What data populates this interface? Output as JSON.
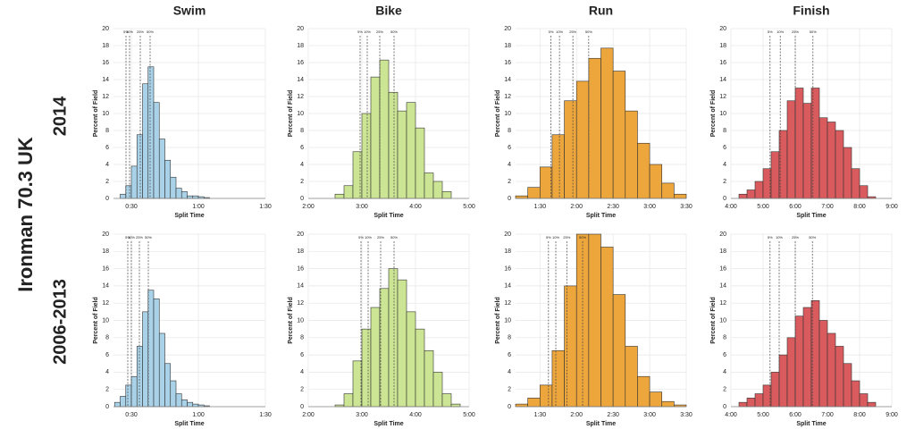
{
  "figure": {
    "title": "Ironman 70.3 UK",
    "rows": [
      "2014",
      "2006-2013"
    ]
  },
  "chart_data": [
    {
      "type": "histogram",
      "title": "Swim",
      "xlabel": "Split Time",
      "ylabel": "Percent of Field",
      "color": "#a9d2e8",
      "bins": [
        25,
        27.5,
        30,
        32.5,
        35,
        37.5,
        40,
        42.5,
        45,
        47.5,
        50,
        52.5,
        55,
        57.5,
        60,
        62.5,
        65
      ],
      "values": [
        0.5,
        1.5,
        3.8,
        7.5,
        13.5,
        15.5,
        11.3,
        7,
        4.5,
        2.5,
        1.2,
        0.8,
        0.3,
        0.3,
        0.2,
        0.1
      ],
      "xlim": [
        22,
        90
      ],
      "xticks": [
        {
          "value": 30,
          "label": "0:30"
        },
        {
          "value": 60,
          "label": "1:00"
        },
        {
          "value": 90,
          "label": "1:30"
        }
      ],
      "ylim": [
        0,
        20
      ],
      "yticks": [
        0,
        2,
        4,
        6,
        8,
        10,
        12,
        14,
        16,
        18,
        20
      ],
      "grid": true,
      "percentiles": [
        {
          "value": 27.6,
          "label": "5%"
        },
        {
          "value": 29.2,
          "label": "10%"
        },
        {
          "value": 34,
          "label": "25%"
        },
        {
          "value": 38.4,
          "label": "50%"
        }
      ]
    },
    {
      "type": "histogram",
      "title": "Bike",
      "xlabel": "Split Time",
      "ylabel": "Percent of Field",
      "color": "#cce594",
      "bins": [
        150,
        160,
        170,
        180,
        190,
        200,
        210,
        220,
        230,
        240,
        250,
        260,
        270,
        280
      ],
      "values": [
        0.5,
        1.5,
        5.5,
        10,
        14.3,
        16.3,
        12.5,
        10.3,
        11.3,
        8.3,
        3,
        2,
        0.8
      ],
      "xlim": [
        120,
        300
      ],
      "xticks": [
        {
          "value": 120,
          "label": "2:00"
        },
        {
          "value": 180,
          "label": "3:00"
        },
        {
          "value": 240,
          "label": "4:00"
        },
        {
          "value": 300,
          "label": "5:00"
        }
      ],
      "ylim": [
        0,
        20
      ],
      "yticks": [
        0,
        2,
        4,
        6,
        8,
        10,
        12,
        14,
        16,
        18,
        20
      ],
      "grid": true,
      "percentiles": [
        {
          "value": 178,
          "label": "5%"
        },
        {
          "value": 186,
          "label": "10%"
        },
        {
          "value": 200,
          "label": "25%"
        },
        {
          "value": 216,
          "label": "50%"
        }
      ]
    },
    {
      "type": "histogram",
      "title": "Run",
      "xlabel": "Split Time",
      "ylabel": "Percent of Field",
      "color": "#eda63c",
      "bins": [
        70,
        80,
        90,
        100,
        110,
        120,
        130,
        140,
        150,
        160,
        170,
        180,
        190,
        200,
        210
      ],
      "values": [
        0.3,
        1.3,
        3.7,
        7.5,
        11.5,
        13.8,
        16.5,
        17.7,
        15,
        10.3,
        6.5,
        4,
        1.8,
        0.5
      ],
      "xlim": [
        70,
        210
      ],
      "xticks": [
        {
          "value": 90,
          "label": "1:30"
        },
        {
          "value": 120,
          "label": "2:00"
        },
        {
          "value": 150,
          "label": "2:30"
        },
        {
          "value": 180,
          "label": "3:00"
        },
        {
          "value": 210,
          "label": "3:30"
        }
      ],
      "ylim": [
        0,
        20
      ],
      "yticks": [
        0,
        2,
        4,
        6,
        8,
        10,
        12,
        14,
        16,
        18,
        20
      ],
      "grid": true,
      "percentiles": [
        {
          "value": 99,
          "label": "5%"
        },
        {
          "value": 106,
          "label": "10%"
        },
        {
          "value": 117,
          "label": "25%"
        },
        {
          "value": 130,
          "label": "50%"
        }
      ]
    },
    {
      "type": "histogram",
      "title": "Finish",
      "xlabel": "Split Time",
      "ylabel": "Percent of Field",
      "color": "#d95b5d",
      "bins": [
        255,
        270,
        285,
        300,
        315,
        330,
        345,
        360,
        375,
        390,
        405,
        420,
        435,
        450,
        465,
        480,
        495,
        510
      ],
      "values": [
        0.5,
        1,
        2,
        3.5,
        5.5,
        8,
        11.5,
        13,
        11.2,
        13,
        9.5,
        9,
        8,
        6,
        3.5,
        1.5,
        0.2
      ],
      "xlim": [
        240,
        540
      ],
      "xticks": [
        {
          "value": 240,
          "label": "4:00"
        },
        {
          "value": 300,
          "label": "5:00"
        },
        {
          "value": 360,
          "label": "6:00"
        },
        {
          "value": 420,
          "label": "7:00"
        },
        {
          "value": 480,
          "label": "8:00"
        },
        {
          "value": 540,
          "label": "9:00"
        }
      ],
      "ylim": [
        0,
        20
      ],
      "yticks": [
        0,
        2,
        4,
        6,
        8,
        10,
        12,
        14,
        16,
        18,
        20
      ],
      "grid": true,
      "percentiles": [
        {
          "value": 313,
          "label": "5%"
        },
        {
          "value": 332,
          "label": "10%"
        },
        {
          "value": 360,
          "label": "25%"
        },
        {
          "value": 393,
          "label": "50%"
        }
      ]
    },
    {
      "type": "histogram",
      "xlabel": "Split Time",
      "ylabel": "Percent of Field",
      "color": "#a9d2e8",
      "bins": [
        22.5,
        25,
        27.5,
        30,
        32.5,
        35,
        37.5,
        40,
        42.5,
        45,
        47.5,
        50,
        52.5,
        55,
        57.5,
        60,
        62.5,
        65
      ],
      "values": [
        0.5,
        1.2,
        2.5,
        3.5,
        7,
        11,
        13.5,
        12.5,
        8.5,
        5,
        3,
        1.5,
        0.8,
        0.5,
        0.3,
        0.2,
        0.1
      ],
      "xlim": [
        22,
        90
      ],
      "xticks": [
        {
          "value": 30,
          "label": "0:30"
        },
        {
          "value": 60,
          "label": "1:00"
        },
        {
          "value": 90,
          "label": "1:30"
        }
      ],
      "ylim": [
        0,
        20
      ],
      "yticks": [
        0,
        2,
        4,
        6,
        8,
        10,
        12,
        14,
        16,
        18,
        20
      ],
      "grid": true,
      "percentiles": [
        {
          "value": 28.4,
          "label": "5%"
        },
        {
          "value": 30,
          "label": "10%"
        },
        {
          "value": 33.6,
          "label": "25%"
        },
        {
          "value": 37.6,
          "label": "50%"
        }
      ]
    },
    {
      "type": "histogram",
      "xlabel": "Split Time",
      "ylabel": "Percent of Field",
      "color": "#cce594",
      "bins": [
        150,
        160,
        170,
        180,
        190,
        200,
        210,
        220,
        230,
        240,
        250,
        260,
        270,
        280,
        290
      ],
      "values": [
        0.2,
        1.5,
        5.3,
        9,
        11.5,
        13.7,
        16,
        14.7,
        11,
        9,
        6.5,
        4,
        1.5,
        0.3
      ],
      "xlim": [
        120,
        300
      ],
      "xticks": [
        {
          "value": 120,
          "label": "2:00"
        },
        {
          "value": 180,
          "label": "3:00"
        },
        {
          "value": 240,
          "label": "4:00"
        },
        {
          "value": 300,
          "label": "5:00"
        }
      ],
      "ylim": [
        0,
        20
      ],
      "yticks": [
        0,
        2,
        4,
        6,
        8,
        10,
        12,
        14,
        16,
        18,
        20
      ],
      "grid": true,
      "percentiles": [
        {
          "value": 179,
          "label": "5%"
        },
        {
          "value": 187,
          "label": "10%"
        },
        {
          "value": 201,
          "label": "25%"
        },
        {
          "value": 216,
          "label": "50%"
        }
      ]
    },
    {
      "type": "histogram",
      "xlabel": "Split Time",
      "ylabel": "Percent of Field",
      "color": "#eda63c",
      "bins": [
        70,
        80,
        90,
        100,
        110,
        120,
        130,
        140,
        150,
        160,
        170,
        180,
        190,
        200,
        210
      ],
      "values": [
        0.3,
        1,
        2.5,
        6.5,
        14,
        20,
        20,
        18.5,
        13,
        7,
        3.5,
        1.7,
        0.6,
        0.2
      ],
      "xlim": [
        70,
        210
      ],
      "xticks": [
        {
          "value": 90,
          "label": "1:30"
        },
        {
          "value": 120,
          "label": "2:00"
        },
        {
          "value": 150,
          "label": "2:30"
        },
        {
          "value": 180,
          "label": "3:00"
        },
        {
          "value": 210,
          "label": "3:30"
        }
      ],
      "ylim": [
        0,
        20
      ],
      "yticks": [
        0,
        2,
        4,
        6,
        8,
        10,
        12,
        14,
        16,
        18,
        20
      ],
      "grid": true,
      "percentiles": [
        {
          "value": 97,
          "label": "5%"
        },
        {
          "value": 103,
          "label": "10%"
        },
        {
          "value": 112,
          "label": "25%"
        },
        {
          "value": 125,
          "label": "50%"
        }
      ]
    },
    {
      "type": "histogram",
      "xlabel": "Split Time",
      "ylabel": "Percent of Field",
      "color": "#d95b5d",
      "bins": [
        255,
        270,
        285,
        300,
        315,
        330,
        345,
        360,
        375,
        390,
        405,
        420,
        435,
        450,
        465,
        480,
        495,
        510
      ],
      "values": [
        0.5,
        1,
        1.5,
        2.5,
        4,
        6,
        8,
        10.5,
        11.5,
        12.3,
        10,
        8.5,
        7,
        5,
        3,
        1.5,
        0.5
      ],
      "xlim": [
        240,
        540
      ],
      "xticks": [
        {
          "value": 240,
          "label": "4:00"
        },
        {
          "value": 300,
          "label": "5:00"
        },
        {
          "value": 360,
          "label": "6:00"
        },
        {
          "value": 420,
          "label": "7:00"
        },
        {
          "value": 480,
          "label": "8:00"
        },
        {
          "value": 540,
          "label": "9:00"
        }
      ],
      "ylim": [
        0,
        20
      ],
      "yticks": [
        0,
        2,
        4,
        6,
        8,
        10,
        12,
        14,
        16,
        18,
        20
      ],
      "grid": true,
      "percentiles": [
        {
          "value": 313,
          "label": "5%"
        },
        {
          "value": 330,
          "label": "10%"
        },
        {
          "value": 360,
          "label": "25%"
        },
        {
          "value": 392,
          "label": "50%"
        }
      ]
    }
  ]
}
